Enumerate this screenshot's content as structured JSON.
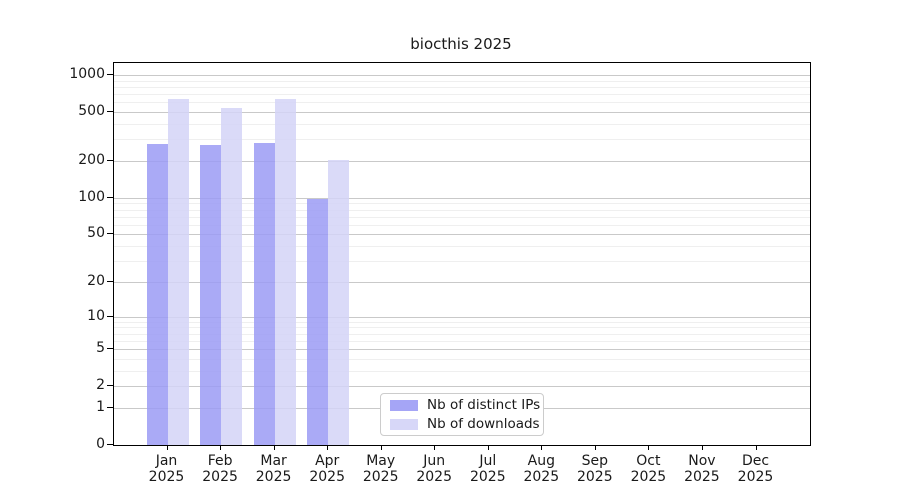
{
  "title": "biocthis 2025",
  "colors": {
    "bar_distinct_ips": "#9b9bf5",
    "bar_downloads": "#d3d3f7",
    "grid_major": "#c9c9c9",
    "grid_minor": "#efefef",
    "axis": "#000000",
    "legend_border": "#cccccc"
  },
  "chart_data": {
    "type": "bar",
    "title": "biocthis 2025",
    "xlabel": "",
    "ylabel": "",
    "year": "2025",
    "categories": [
      "Jan",
      "Feb",
      "Mar",
      "Apr",
      "May",
      "Jun",
      "Jul",
      "Aug",
      "Sep",
      "Oct",
      "Nov",
      "Dec"
    ],
    "series": [
      {
        "name": "Nb of distinct IPs",
        "color": "#9b9bf5",
        "values": [
          277,
          272,
          282,
          97,
          null,
          null,
          null,
          null,
          null,
          null,
          null,
          null
        ]
      },
      {
        "name": "Nb of downloads",
        "color": "#d3d3f7",
        "values": [
          634,
          537,
          643,
          205,
          null,
          null,
          null,
          null,
          null,
          null,
          null,
          null
        ]
      }
    ],
    "y_scale": "log10(value+1)",
    "y_ticks": [
      0,
      1,
      2,
      5,
      10,
      20,
      50,
      100,
      200,
      500,
      1000
    ],
    "y_minor_gridlines": [
      3,
      4,
      6,
      7,
      8,
      9,
      30,
      40,
      60,
      70,
      80,
      90,
      300,
      400,
      600,
      700,
      800,
      900
    ],
    "ylim": [
      0,
      1250
    ],
    "grid": "horizontal",
    "legend_position": "bottom-center"
  }
}
